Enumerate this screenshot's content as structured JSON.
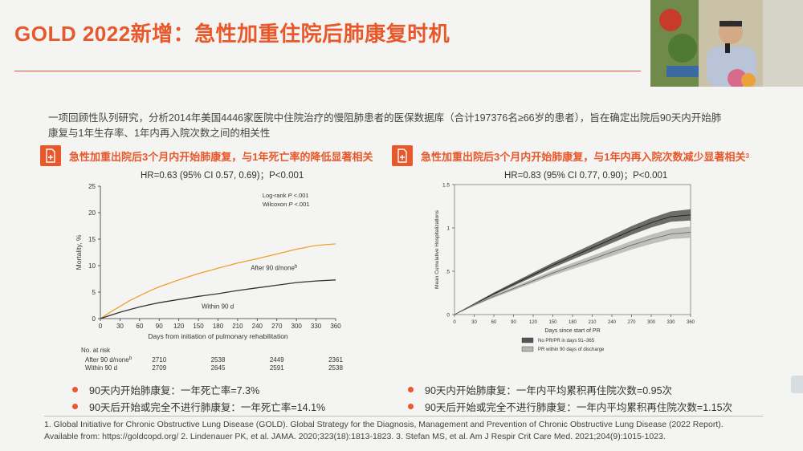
{
  "header": {
    "title": "GOLD 2022新增：急性加重住院后肺康复时机"
  },
  "intro": {
    "line1": "一项回顾性队列研究，分析2014年美国4446家医院中住院治疗的慢阻肺患者的医保数据库（合计197376名≥66岁的患者），旨在确定出院后90天内开始肺",
    "line2": "康复与1年生存率、1年内再入院次数之间的相关性"
  },
  "left_panel": {
    "heading": "急性加重出院后3个月内开始肺康复，与1年死亡率的降低显著相关",
    "hr": "HR=0.63 (95% CI 0.57, 0.69)；P<0.001",
    "bullets": [
      "90天内开始肺康复：一年死亡率=7.3%",
      "90天后开始或完全不进行肺康复：一年死亡率=14.1%"
    ],
    "risk_table": {
      "header": "No. at risk",
      "rows": [
        {
          "label": "After 90 d/none",
          "sup": "b",
          "values": [
            "2710",
            "2538",
            "2449",
            "2361"
          ]
        },
        {
          "label": "Within 90 d",
          "sup": "",
          "values": [
            "2709",
            "2645",
            "2591",
            "2538"
          ]
        }
      ]
    }
  },
  "right_panel": {
    "heading": "急性加重出院后3个月内开始肺康复，与1年内再入院次数减少显著相关",
    "heading_sup": "3",
    "hr": "HR=0.83 (95% CI 0.77, 0.90)；P<0.001",
    "bullets": [
      "90天内开始肺康复：一年内平均累积再住院次数=0.95次",
      "90天后开始或完全不进行肺康复：一年内平均累积再住院次数=1.15次"
    ]
  },
  "footnote": {
    "line1": "1. Global Initiative for Chronic Obstructive Lung Disease (GOLD). Global Strategy for the Diagnosis, Management and Prevention of Chronic Obstructive Lung Disease (2022 Report).",
    "line2": "Available from: https://goldcopd.org/ 2. Lindenauer PK, et al. JAMA. 2020;323(18):1813-1823. 3. Stefan MS, et al. Am J Respir Crit Care Med. 2021;204(9):1015-1023."
  },
  "colors": {
    "accent": "#e8582b",
    "after_line": "#f0a030",
    "within_line": "#333333",
    "no_pr_line": "#444444",
    "pr_line": "#888888"
  },
  "icons": {
    "heading_icon": "document-plus-icon",
    "bullet": "orange-dot"
  },
  "chart_data": [
    {
      "type": "line",
      "xlabel": "Days from initiation of pulmonary rehabilitation",
      "ylabel": "Mortality, %",
      "xlim": [
        0,
        360
      ],
      "ylim": [
        0,
        25
      ],
      "x_ticks": [
        0,
        30,
        60,
        90,
        120,
        150,
        180,
        210,
        240,
        270,
        300,
        330,
        360
      ],
      "y_ticks": [
        0,
        5,
        10,
        15,
        20,
        25
      ],
      "annotations": [
        {
          "text": "Log-rank ",
          "italic": "P",
          "rest": " <.001"
        },
        {
          "text": "Wilcoxon ",
          "italic": "P",
          "rest": " <.001"
        }
      ],
      "legend": "inline labels",
      "series": [
        {
          "name": "After 90 d/none",
          "sup": "b",
          "color": "#f0a030",
          "x": [
            0,
            15,
            30,
            45,
            60,
            75,
            90,
            120,
            150,
            180,
            210,
            240,
            270,
            300,
            330,
            360
          ],
          "y": [
            0,
            1.2,
            2.3,
            3.4,
            4.3,
            5.2,
            6.0,
            7.3,
            8.5,
            9.5,
            10.5,
            11.3,
            12.2,
            13.1,
            13.8,
            14.1
          ]
        },
        {
          "name": "Within 90 d",
          "sup": "",
          "color": "#333333",
          "x": [
            0,
            15,
            30,
            45,
            60,
            75,
            90,
            120,
            150,
            180,
            210,
            240,
            270,
            300,
            330,
            360
          ],
          "y": [
            0,
            0.6,
            1.2,
            1.7,
            2.2,
            2.6,
            3.0,
            3.6,
            4.2,
            4.7,
            5.3,
            5.8,
            6.3,
            6.8,
            7.1,
            7.3
          ]
        }
      ]
    },
    {
      "type": "line",
      "xlabel": "Days since start of PR",
      "ylabel": "Mean Cumulative Hospitalizations",
      "xlim": [
        0,
        360
      ],
      "ylim": [
        0,
        1.5
      ],
      "x_ticks": [
        0,
        30,
        60,
        90,
        120,
        150,
        180,
        210,
        240,
        270,
        300,
        330,
        360
      ],
      "y_ticks": [
        0,
        0.5,
        1,
        1.5
      ],
      "y_tick_labels": [
        "0",
        ".5",
        "1",
        "1.5"
      ],
      "legend": "bottom",
      "series": [
        {
          "name": "No PR/PR in days 91–365",
          "color": "#444444",
          "x": [
            0,
            30,
            60,
            90,
            120,
            150,
            180,
            210,
            240,
            270,
            300,
            330,
            360
          ],
          "y": [
            0,
            0.12,
            0.24,
            0.35,
            0.46,
            0.57,
            0.67,
            0.77,
            0.87,
            0.97,
            1.06,
            1.13,
            1.15
          ],
          "ci_halfwidth": [
            0,
            0.01,
            0.015,
            0.02,
            0.025,
            0.03,
            0.035,
            0.04,
            0.045,
            0.05,
            0.055,
            0.06,
            0.065
          ]
        },
        {
          "name": "PR within 90 days of discharge",
          "color": "#888888",
          "x": [
            0,
            30,
            60,
            90,
            120,
            150,
            180,
            210,
            240,
            270,
            300,
            330,
            360
          ],
          "y": [
            0,
            0.11,
            0.21,
            0.3,
            0.39,
            0.48,
            0.56,
            0.64,
            0.72,
            0.8,
            0.87,
            0.93,
            0.95
          ],
          "ci_halfwidth": [
            0,
            0.01,
            0.015,
            0.02,
            0.025,
            0.03,
            0.035,
            0.04,
            0.045,
            0.05,
            0.055,
            0.06,
            0.065
          ]
        }
      ]
    }
  ]
}
